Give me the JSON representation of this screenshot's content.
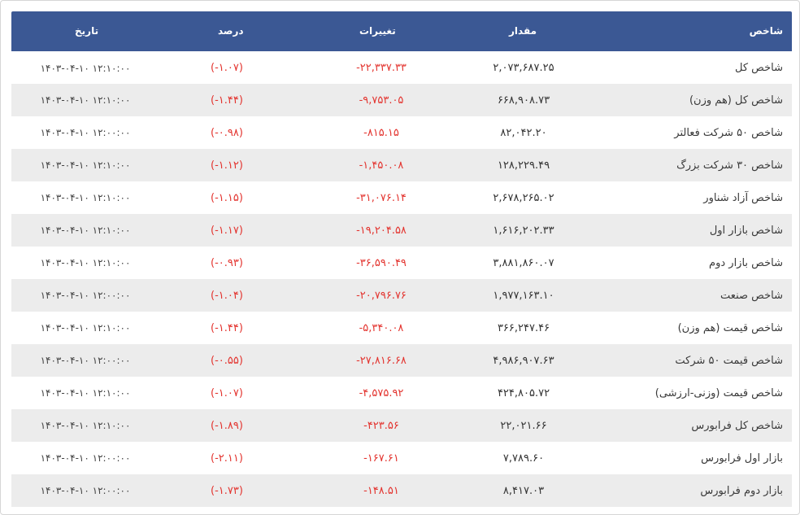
{
  "headers": {
    "name": "شاخص",
    "value": "مقدار",
    "change": "تغییرات",
    "percent": "درصد",
    "date": "تاریخ"
  },
  "colors": {
    "header_bg": "#3b5894",
    "negative": "#e3342f",
    "alt_row": "#ececec"
  },
  "rows": [
    {
      "name": "شاخص کل",
      "value": "۲,۰۷۳,۶۸۷.۲۵",
      "change": "-۲۲,۳۳۷.۳۳",
      "percent": "(-۱.۰۷)",
      "date": "۱۴۰۳-۰۴-۱۰ ۱۲:۱۰:۰۰"
    },
    {
      "name": "شاخص کل (هم وزن)",
      "value": "۶۶۸,۹۰۸.۷۳",
      "change": "-۹,۷۵۳.۰۵",
      "percent": "(-۱.۴۴)",
      "date": "۱۴۰۳-۰۴-۱۰ ۱۲:۱۰:۰۰"
    },
    {
      "name": "شاخص ۵۰ شرکت فعالتر",
      "value": "۸۲,۰۴۲.۲۰",
      "change": "-۸۱۵.۱۵",
      "percent": "(-۰.۹۸)",
      "date": "۱۴۰۳-۰۴-۱۰ ۱۲:۰۰:۰۰"
    },
    {
      "name": "شاخص ۳۰ شرکت بزرگ",
      "value": "۱۲۸,۲۲۹.۴۹",
      "change": "-۱,۴۵۰.۰۸",
      "percent": "(-۱.۱۲)",
      "date": "۱۴۰۳-۰۴-۱۰ ۱۲:۱۰:۰۰"
    },
    {
      "name": "شاخص آزاد شناور",
      "value": "۲,۶۷۸,۲۶۵.۰۲",
      "change": "-۳۱,۰۷۶.۱۴",
      "percent": "(-۱.۱۵)",
      "date": "۱۴۰۳-۰۴-۱۰ ۱۲:۱۰:۰۰"
    },
    {
      "name": "شاخص بازار اول",
      "value": "۱,۶۱۶,۲۰۲.۳۳",
      "change": "-۱۹,۲۰۴.۵۸",
      "percent": "(-۱.۱۷)",
      "date": "۱۴۰۳-۰۴-۱۰ ۱۲:۱۰:۰۰"
    },
    {
      "name": "شاخص بازار دوم",
      "value": "۳,۸۸۱,۸۶۰.۰۷",
      "change": "-۳۶,۵۹۰.۴۹",
      "percent": "(-۰.۹۳)",
      "date": "۱۴۰۳-۰۴-۱۰ ۱۲:۱۰:۰۰"
    },
    {
      "name": "شاخص صنعت",
      "value": "۱,۹۷۷,۱۶۳.۱۰",
      "change": "-۲۰,۷۹۶.۷۶",
      "percent": "(-۱.۰۴)",
      "date": "۱۴۰۳-۰۴-۱۰ ۱۲:۰۰:۰۰"
    },
    {
      "name": "شاخص قیمت (هم وزن)",
      "value": "۳۶۶,۲۴۷.۴۶",
      "change": "-۵,۳۴۰.۰۸",
      "percent": "(-۱.۴۴)",
      "date": "۱۴۰۳-۰۴-۱۰ ۱۲:۱۰:۰۰"
    },
    {
      "name": "شاخص قیمت ۵۰ شرکت",
      "value": "۴,۹۸۶,۹۰۷.۶۳",
      "change": "-۲۷,۸۱۶.۶۸",
      "percent": "(-۰.۵۵)",
      "date": "۱۴۰۳-۰۴-۱۰ ۱۲:۰۰:۰۰"
    },
    {
      "name": "شاخص قیمت (وزنی-ارزشی)",
      "value": "۴۲۴,۸۰۵.۷۲",
      "change": "-۴,۵۷۵.۹۲",
      "percent": "(-۱.۰۷)",
      "date": "۱۴۰۳-۰۴-۱۰ ۱۲:۱۰:۰۰"
    },
    {
      "name": "شاخص کل فرابورس",
      "value": "۲۲,۰۲۱.۶۶",
      "change": "-۴۲۳.۵۶",
      "percent": "(-۱.۸۹)",
      "date": "۱۴۰۳-۰۴-۱۰ ۱۲:۱۰:۰۰"
    },
    {
      "name": "بازار اول فرابورس",
      "value": "۷,۷۸۹.۶۰",
      "change": "-۱۶۷.۶۱",
      "percent": "(-۲.۱۱)",
      "date": "۱۴۰۳-۰۴-۱۰ ۱۲:۰۰:۰۰"
    },
    {
      "name": "بازار دوم فرابورس",
      "value": "۸,۴۱۷.۰۳",
      "change": "-۱۴۸.۵۱",
      "percent": "(-۱.۷۳)",
      "date": "۱۴۰۳-۰۴-۱۰ ۱۲:۰۰:۰۰"
    }
  ]
}
